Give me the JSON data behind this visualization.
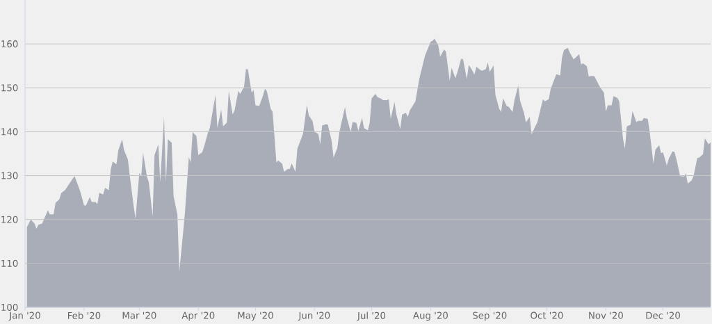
{
  "chart_data": {
    "type": "area",
    "color": "#a8adb8",
    "x": [
      "2020-01-02",
      "2020-01-04",
      "2020-01-06",
      "2020-01-07",
      "2020-01-08",
      "2020-01-10",
      "2020-01-11",
      "2020-01-13",
      "2020-01-14",
      "2020-01-16",
      "2020-01-17",
      "2020-01-19",
      "2020-01-20",
      "2020-01-22",
      "2020-01-24",
      "2020-01-27",
      "2020-01-30",
      "2020-02-01",
      "2020-02-02",
      "2020-02-04",
      "2020-02-05",
      "2020-02-07",
      "2020-02-08",
      "2020-02-09",
      "2020-02-11",
      "2020-02-12",
      "2020-02-14",
      "2020-02-15",
      "2020-02-16",
      "2020-02-18",
      "2020-02-19",
      "2020-02-21",
      "2020-02-22",
      "2020-02-24",
      "2020-02-25",
      "2020-02-27",
      "2020-02-28",
      "2020-03-01",
      "2020-03-02",
      "2020-03-03",
      "2020-03-05",
      "2020-03-06",
      "2020-03-08",
      "2020-03-09",
      "2020-03-11",
      "2020-03-12",
      "2020-03-14",
      "2020-03-15",
      "2020-03-16",
      "2020-03-18",
      "2020-03-19",
      "2020-03-21",
      "2020-03-22",
      "2020-03-24",
      "2020-03-25",
      "2020-03-27",
      "2020-03-28",
      "2020-03-29",
      "2020-03-31",
      "2020-04-01",
      "2020-04-03",
      "2020-04-04",
      "2020-04-06",
      "2020-04-07",
      "2020-04-09",
      "2020-04-10",
      "2020-04-11",
      "2020-04-13",
      "2020-04-14",
      "2020-04-16",
      "2020-04-17",
      "2020-04-19",
      "2020-04-20",
      "2020-04-22",
      "2020-04-23",
      "2020-04-25",
      "2020-04-26",
      "2020-04-27",
      "2020-04-29",
      "2020-04-30",
      "2020-05-01",
      "2020-05-03",
      "2020-05-05",
      "2020-05-06",
      "2020-05-07",
      "2020-05-09",
      "2020-05-10",
      "2020-05-12",
      "2020-05-13",
      "2020-05-15",
      "2020-05-16",
      "2020-05-18",
      "2020-05-19",
      "2020-05-20",
      "2020-05-22",
      "2020-05-23",
      "2020-05-25",
      "2020-05-26",
      "2020-05-28",
      "2020-05-29",
      "2020-05-31",
      "2020-06-01",
      "2020-06-03",
      "2020-06-04",
      "2020-06-05",
      "2020-06-07",
      "2020-06-08",
      "2020-06-10",
      "2020-06-11",
      "2020-06-13",
      "2020-06-14",
      "2020-06-17",
      "2020-06-18",
      "2020-06-20",
      "2020-06-21",
      "2020-06-23",
      "2020-06-24",
      "2020-06-26",
      "2020-06-27",
      "2020-06-29",
      "2020-06-30",
      "2020-07-01",
      "2020-07-03",
      "2020-07-04",
      "2020-07-06",
      "2020-07-07",
      "2020-07-09",
      "2020-07-10",
      "2020-07-11",
      "2020-07-13",
      "2020-07-14",
      "2020-07-16",
      "2020-07-17",
      "2020-07-19",
      "2020-07-20",
      "2020-07-21",
      "2020-07-24",
      "2020-07-26",
      "2020-07-29",
      "2020-08-01",
      "2020-08-02",
      "2020-08-03",
      "2020-08-05",
      "2020-08-06",
      "2020-08-08",
      "2020-08-09",
      "2020-08-11",
      "2020-08-12",
      "2020-08-14",
      "2020-08-15",
      "2020-08-17",
      "2020-08-18",
      "2020-08-20",
      "2020-08-21",
      "2020-08-22",
      "2020-08-24",
      "2020-08-25",
      "2020-08-27",
      "2020-08-28",
      "2020-08-30",
      "2020-08-31",
      "2020-09-01",
      "2020-09-03",
      "2020-09-04",
      "2020-09-06",
      "2020-09-07",
      "2020-09-08",
      "2020-09-10",
      "2020-09-11",
      "2020-09-13",
      "2020-09-14",
      "2020-09-16",
      "2020-09-17",
      "2020-09-19",
      "2020-09-20",
      "2020-09-22",
      "2020-09-23",
      "2020-09-25",
      "2020-09-26",
      "2020-09-28",
      "2020-09-29",
      "2020-09-30",
      "2020-10-02",
      "2020-10-03",
      "2020-10-05",
      "2020-10-06",
      "2020-10-08",
      "2020-10-09",
      "2020-10-10",
      "2020-10-12",
      "2020-10-13",
      "2020-10-15",
      "2020-10-16",
      "2020-10-18",
      "2020-10-19",
      "2020-10-20",
      "2020-10-22",
      "2020-10-23",
      "2020-10-25",
      "2020-10-26",
      "2020-10-28",
      "2020-10-29",
      "2020-10-31",
      "2020-11-01",
      "2020-11-02",
      "2020-11-04",
      "2020-11-05",
      "2020-11-07",
      "2020-11-08",
      "2020-11-10",
      "2020-11-11",
      "2020-11-12",
      "2020-11-14",
      "2020-11-15",
      "2020-11-17",
      "2020-11-18",
      "2020-11-20",
      "2020-11-21",
      "2020-11-23",
      "2020-11-24",
      "2020-11-26",
      "2020-11-27",
      "2020-11-29",
      "2020-11-30",
      "2020-12-01",
      "2020-12-03",
      "2020-12-04",
      "2020-12-06",
      "2020-12-07",
      "2020-12-08",
      "2020-12-10",
      "2020-12-12",
      "2020-12-13",
      "2020-12-14",
      "2020-12-16",
      "2020-12-17",
      "2020-12-19",
      "2020-12-20",
      "2020-12-22",
      "2020-12-23",
      "2020-12-25",
      "2020-12-26"
    ],
    "values": [
      118.3,
      120.0,
      119.1,
      117.9,
      118.8,
      119.1,
      120.1,
      122.1,
      121.2,
      121.2,
      123.8,
      124.6,
      126.0,
      126.7,
      128.0,
      129.9,
      126.4,
      123.2,
      123.2,
      125.1,
      124.0,
      124.0,
      123.5,
      126.1,
      125.7,
      127.2,
      126.7,
      131.4,
      133.2,
      132.6,
      135.8,
      138.3,
      135.8,
      133.7,
      130.0,
      123.2,
      120.2,
      130.6,
      129.8,
      135.2,
      129.8,
      128.5,
      120.7,
      134.7,
      137.1,
      128.5,
      143.4,
      128.5,
      138.3,
      137.5,
      125.3,
      121.2,
      108.1,
      117.0,
      121.7,
      134.2,
      133.0,
      139.9,
      139.0,
      134.7,
      135.3,
      136.6,
      139.7,
      140.8,
      145.8,
      148.4,
      140.9,
      145.0,
      141.2,
      142.1,
      149.3,
      143.9,
      144.8,
      149.3,
      148.6,
      150.2,
      154.3,
      154.2,
      148.9,
      149.5,
      146.0,
      145.9,
      148.3,
      149.8,
      149.2,
      145.2,
      144.5,
      133.0,
      133.4,
      132.7,
      130.9,
      131.5,
      131.5,
      132.8,
      130.9,
      136.1,
      138.4,
      139.6,
      146.1,
      143.7,
      142.4,
      140.0,
      139.5,
      137.1,
      141.4,
      141.7,
      141.6,
      137.9,
      134.1,
      136.3,
      139.8,
      145.6,
      143.1,
      140.0,
      142.2,
      142.0,
      140.2,
      143.1,
      140.8,
      140.3,
      142.1,
      147.6,
      148.6,
      147.9,
      147.5,
      147.2,
      147.2,
      147.4,
      142.9,
      146.8,
      143.9,
      140.6,
      143.9,
      144.3,
      143.4,
      144.8,
      146.9,
      152.0,
      157.3,
      160.5,
      160.7,
      161.2,
      159.7,
      157.1,
      158.7,
      158.3,
      151.6,
      154.5,
      152.2,
      153.5,
      156.6,
      156.5,
      152.0,
      155.2,
      154.6,
      153.0,
      154.8,
      154.1,
      153.9,
      154.3,
      155.8,
      153.6,
      155.1,
      148.4,
      145.2,
      144.5,
      147.6,
      145.8,
      145.7,
      144.5,
      147.2,
      150.5,
      147.0,
      144.3,
      142.1,
      143.4,
      139.4,
      141.3,
      142.1,
      145.7,
      147.4,
      146.9,
      147.4,
      149.7,
      152.0,
      153.1,
      152.8,
      157.0,
      158.6,
      159.1,
      158.1,
      156.5,
      156.8,
      157.7,
      155.3,
      155.6,
      154.9,
      152.6,
      152.7,
      152.6,
      150.9,
      150.1,
      148.9,
      144.6,
      146.0,
      146.0,
      148.1,
      147.7,
      146.9,
      138.4,
      136.1,
      141.2,
      141.6,
      144.7,
      142.2,
      142.5,
      142.5,
      143.1,
      142.9,
      140.0,
      132.7,
      135.9,
      136.9,
      135.1,
      135.3,
      132.3,
      133.8,
      135.5,
      135.4,
      133.8,
      129.9,
      129.8,
      130.5,
      128.2,
      128.9,
      129.8,
      134.0,
      134.1,
      134.9,
      138.5,
      137.1,
      137.6
    ],
    "xlim": [
      "2020-01-01",
      "2020-12-26"
    ],
    "xticks": [
      {
        "value": "2020-01-01",
        "label": "Jan '20"
      },
      {
        "value": "2020-02-01",
        "label": "Feb '20"
      },
      {
        "value": "2020-03-01",
        "label": "Mar '20"
      },
      {
        "value": "2020-04-01",
        "label": "Apr '20"
      },
      {
        "value": "2020-05-01",
        "label": "May '20"
      },
      {
        "value": "2020-06-01",
        "label": "Jun '20"
      },
      {
        "value": "2020-07-01",
        "label": "Jul '20"
      },
      {
        "value": "2020-08-01",
        "label": "Aug '20"
      },
      {
        "value": "2020-09-01",
        "label": "Sep '20"
      },
      {
        "value": "2020-10-01",
        "label": "Oct '20"
      },
      {
        "value": "2020-11-01",
        "label": "Nov '20"
      },
      {
        "value": "2020-12-01",
        "label": "Dec '20"
      }
    ],
    "ylim": [
      100,
      170
    ],
    "yticks": [
      100,
      110,
      120,
      130,
      140,
      150,
      160
    ],
    "grid": "y"
  }
}
